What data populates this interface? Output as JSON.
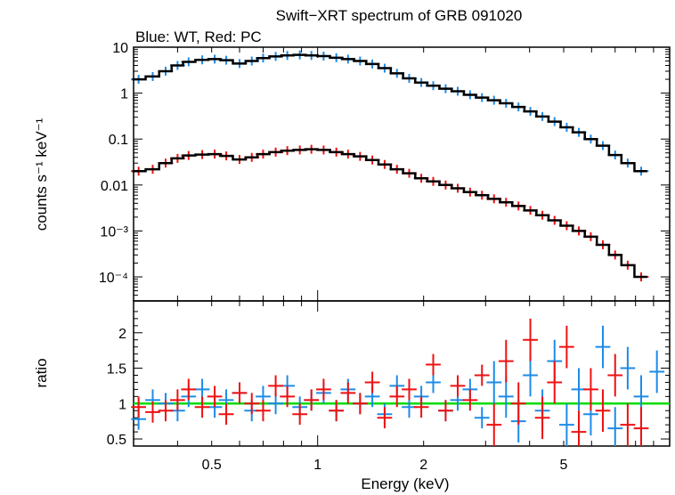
{
  "chart_data": [
    {
      "type": "scatter",
      "title": "Swift−XRT spectrum of GRB 091020",
      "subtitle": "Blue: WT, Red: PC",
      "xlabel": "Energy (keV)",
      "ylabel": "counts s⁻¹ keV⁻¹",
      "xscale": "log",
      "yscale": "log",
      "xlim": [
        0.3,
        10
      ],
      "ylim": [
        3e-05,
        10
      ],
      "yticks": [
        {
          "value": 10,
          "label": "10"
        },
        {
          "value": 1,
          "label": "1"
        },
        {
          "value": 0.1,
          "label": "0.1"
        },
        {
          "value": 0.01,
          "label": "0.01"
        },
        {
          "value": 0.001,
          "label": "10⁻³"
        },
        {
          "value": 0.0001,
          "label": "10⁻⁴"
        }
      ],
      "colors": {
        "WT": "#1e8be6",
        "PC": "#ee1111",
        "model": "#000000"
      },
      "series": [
        {
          "key": "WT",
          "x": [
            0.31,
            0.34,
            0.37,
            0.4,
            0.43,
            0.47,
            0.51,
            0.55,
            0.6,
            0.65,
            0.7,
            0.76,
            0.82,
            0.89,
            0.96,
            1.04,
            1.13,
            1.22,
            1.32,
            1.43,
            1.55,
            1.68,
            1.82,
            1.97,
            2.13,
            2.31,
            2.5,
            2.71,
            2.93,
            3.17,
            3.43,
            3.72,
            4.02,
            4.35,
            4.71,
            5.1,
            5.52,
            5.97,
            6.46,
            7.0,
            7.6,
            8.3
          ],
          "y": [
            2.0,
            2.3,
            3.0,
            4.0,
            4.8,
            5.3,
            5.5,
            5.2,
            4.4,
            5.0,
            5.8,
            6.3,
            6.6,
            6.8,
            6.6,
            6.4,
            5.9,
            5.5,
            5.0,
            4.3,
            3.5,
            2.7,
            2.1,
            1.7,
            1.45,
            1.25,
            1.1,
            0.92,
            0.8,
            0.7,
            0.6,
            0.5,
            0.4,
            0.31,
            0.24,
            0.18,
            0.14,
            0.1,
            0.072,
            0.045,
            0.03,
            0.02
          ]
        },
        {
          "key": "PC",
          "x": [
            0.31,
            0.34,
            0.37,
            0.4,
            0.43,
            0.47,
            0.51,
            0.55,
            0.6,
            0.65,
            0.7,
            0.76,
            0.82,
            0.89,
            0.96,
            1.04,
            1.13,
            1.22,
            1.32,
            1.43,
            1.55,
            1.68,
            1.82,
            1.97,
            2.13,
            2.31,
            2.5,
            2.71,
            2.93,
            3.17,
            3.43,
            3.72,
            4.02,
            4.35,
            4.71,
            5.1,
            5.52,
            5.97,
            6.46,
            7.0,
            7.6,
            8.3
          ],
          "y": [
            0.02,
            0.022,
            0.03,
            0.038,
            0.044,
            0.046,
            0.047,
            0.043,
            0.036,
            0.04,
            0.047,
            0.052,
            0.056,
            0.058,
            0.06,
            0.058,
            0.052,
            0.047,
            0.042,
            0.035,
            0.028,
            0.022,
            0.018,
            0.014,
            0.012,
            0.01,
            0.0085,
            0.007,
            0.006,
            0.005,
            0.0042,
            0.0035,
            0.0028,
            0.0022,
            0.0017,
            0.0013,
            0.001,
            0.00075,
            0.0005,
            0.0003,
            0.00018,
            0.0001
          ]
        }
      ]
    },
    {
      "type": "scatter",
      "xlabel": "Energy (keV)",
      "ylabel": "ratio",
      "xscale": "log",
      "xlim": [
        0.3,
        10
      ],
      "ylim": [
        0.4,
        2.45
      ],
      "yticks": [
        {
          "value": 0.5,
          "label": "0.5"
        },
        {
          "value": 1,
          "label": "1"
        },
        {
          "value": 1.5,
          "label": "1.5"
        },
        {
          "value": 2,
          "label": "2"
        }
      ],
      "xticks": [
        {
          "value": 0.5,
          "label": "0.5"
        },
        {
          "value": 1,
          "label": "1"
        },
        {
          "value": 2,
          "label": "2"
        },
        {
          "value": 5,
          "label": "5"
        }
      ],
      "reference_line": {
        "y": 1,
        "color": "#00dd00"
      },
      "series": [
        {
          "key": "WT",
          "x": [
            0.31,
            0.34,
            0.37,
            0.4,
            0.43,
            0.47,
            0.51,
            0.55,
            0.6,
            0.65,
            0.7,
            0.76,
            0.82,
            0.89,
            0.96,
            1.04,
            1.13,
            1.22,
            1.32,
            1.43,
            1.55,
            1.68,
            1.82,
            1.97,
            2.13,
            2.31,
            2.5,
            2.71,
            2.93,
            3.17,
            3.43,
            3.72,
            4.02,
            4.35,
            4.71,
            5.1,
            5.52,
            5.97,
            6.46,
            7.0,
            7.6,
            8.3,
            9.2
          ],
          "y": [
            0.78,
            1.05,
            1.0,
            0.9,
            1.1,
            1.2,
            0.95,
            1.05,
            1.15,
            0.9,
            1.1,
            1.0,
            1.25,
            0.95,
            1.05,
            1.15,
            0.9,
            1.2,
            1.0,
            1.1,
            0.85,
            1.25,
            0.95,
            1.1,
            1.3,
            0.9,
            1.05,
            1.2,
            0.8,
            1.3,
            1.1,
            0.75,
            1.4,
            0.9,
            1.6,
            0.7,
            1.2,
            0.85,
            1.8,
            0.65,
            1.5,
            1.1,
            1.45
          ]
        },
        {
          "key": "PC",
          "x": [
            0.31,
            0.34,
            0.37,
            0.4,
            0.43,
            0.47,
            0.51,
            0.55,
            0.6,
            0.65,
            0.7,
            0.76,
            0.82,
            0.89,
            0.96,
            1.04,
            1.13,
            1.22,
            1.32,
            1.43,
            1.55,
            1.68,
            1.82,
            1.97,
            2.13,
            2.31,
            2.5,
            2.71,
            2.93,
            3.17,
            3.43,
            3.72,
            4.02,
            4.35,
            4.71,
            5.1,
            5.52,
            5.97,
            6.46,
            7.0,
            7.6,
            8.3
          ],
          "y": [
            0.95,
            0.88,
            0.9,
            1.05,
            1.2,
            0.95,
            1.1,
            0.85,
            1.15,
            1.0,
            0.9,
            1.25,
            1.1,
            0.85,
            1.05,
            1.2,
            0.9,
            1.15,
            1.0,
            1.3,
            0.8,
            1.1,
            1.2,
            0.95,
            1.55,
            0.9,
            1.25,
            1.05,
            1.4,
            0.7,
            1.6,
            1.0,
            1.9,
            0.8,
            1.3,
            1.8,
            0.6,
            1.2,
            0.9,
            1.4,
            0.7,
            0.65
          ]
        }
      ]
    }
  ]
}
